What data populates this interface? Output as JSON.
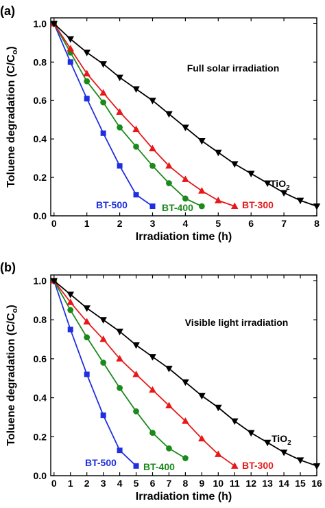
{
  "chart_data": [
    {
      "type": "line",
      "panel_label": "(a)",
      "annotation": "Full solar irradiation",
      "xlabel": "Irradiation time (h)",
      "ylabel_main": "Toluene degradation (C/C",
      "ylabel_sub": "o",
      "ylabel_close": ")",
      "xlim": [
        -0.1,
        8
      ],
      "ylim": [
        0,
        1.03
      ],
      "xticks": [
        0,
        1,
        2,
        3,
        4,
        5,
        6,
        7,
        8
      ],
      "yticks": [
        0.0,
        0.2,
        0.4,
        0.6,
        0.8,
        1.0
      ],
      "ytick_labels": [
        "0.0",
        "0.2",
        "0.4",
        "0.6",
        "0.8",
        "1.0"
      ],
      "series": [
        {
          "name": "BT-500",
          "color": "#1f2fe0",
          "marker": "square",
          "x": [
            0,
            0.5,
            1,
            1.5,
            2,
            2.5,
            3
          ],
          "y": [
            1.0,
            0.8,
            0.61,
            0.43,
            0.26,
            0.11,
            0.05
          ]
        },
        {
          "name": "BT-400",
          "color": "#1a8a1a",
          "marker": "circle",
          "x": [
            0,
            0.5,
            1,
            1.5,
            2,
            2.5,
            3,
            3.5,
            4,
            4.5
          ],
          "y": [
            1.0,
            0.85,
            0.7,
            0.59,
            0.46,
            0.36,
            0.26,
            0.17,
            0.09,
            0.05
          ]
        },
        {
          "name": "BT-300",
          "color": "#e81818",
          "marker": "triangle-up",
          "x": [
            0,
            0.5,
            1,
            1.5,
            2,
            2.5,
            3,
            3.5,
            4,
            4.5,
            5,
            5.5
          ],
          "y": [
            1.0,
            0.87,
            0.74,
            0.64,
            0.54,
            0.45,
            0.35,
            0.26,
            0.19,
            0.13,
            0.08,
            0.05
          ]
        },
        {
          "name": "TiO2",
          "label_main": "TiO",
          "label_sub": "2",
          "color": "#000000",
          "marker": "triangle-down",
          "x": [
            0,
            0.5,
            1,
            1.5,
            2,
            2.5,
            3,
            3.5,
            4,
            4.5,
            5,
            5.5,
            6,
            6.5,
            7,
            7.5,
            8
          ],
          "y": [
            1.0,
            0.92,
            0.85,
            0.79,
            0.72,
            0.66,
            0.6,
            0.53,
            0.46,
            0.39,
            0.33,
            0.27,
            0.22,
            0.17,
            0.12,
            0.08,
            0.05
          ]
        }
      ]
    },
    {
      "type": "line",
      "panel_label": "(b)",
      "annotation": "Visible light irradiation",
      "xlabel": "Irradiation time (h)",
      "ylabel_main": "Toluene degradation (C/C",
      "ylabel_sub": "o",
      "ylabel_close": ")",
      "xlim": [
        -0.2,
        16
      ],
      "ylim": [
        0,
        1.03
      ],
      "xticks": [
        0,
        1,
        2,
        3,
        4,
        5,
        6,
        7,
        8,
        9,
        10,
        11,
        12,
        13,
        14,
        15,
        16
      ],
      "yticks": [
        0.0,
        0.2,
        0.4,
        0.6,
        0.8,
        1.0
      ],
      "ytick_labels": [
        "0.0",
        "0.2",
        "0.4",
        "0.6",
        "0.8",
        "1.0"
      ],
      "series": [
        {
          "name": "BT-500",
          "color": "#1f2fe0",
          "marker": "square",
          "x": [
            0,
            1,
            2,
            3,
            4,
            5
          ],
          "y": [
            1.0,
            0.75,
            0.52,
            0.31,
            0.13,
            0.05
          ]
        },
        {
          "name": "BT-400",
          "color": "#1a8a1a",
          "marker": "circle",
          "x": [
            0,
            1,
            2,
            3,
            4,
            5,
            6,
            7,
            8
          ],
          "y": [
            1.0,
            0.85,
            0.71,
            0.58,
            0.45,
            0.33,
            0.22,
            0.14,
            0.09
          ]
        },
        {
          "name": "BT-300",
          "color": "#e81818",
          "marker": "triangle-up",
          "x": [
            0,
            1,
            2,
            3,
            4,
            5,
            6,
            7,
            8,
            9,
            10,
            11
          ],
          "y": [
            1.0,
            0.89,
            0.79,
            0.7,
            0.6,
            0.52,
            0.44,
            0.36,
            0.28,
            0.19,
            0.11,
            0.05
          ]
        },
        {
          "name": "TiO2",
          "label_main": "TiO",
          "label_sub": "2",
          "color": "#000000",
          "marker": "triangle-down",
          "x": [
            0,
            1,
            2,
            3,
            4,
            5,
            6,
            7,
            8,
            9,
            10,
            11,
            12,
            13,
            14,
            15,
            16
          ],
          "y": [
            1.0,
            0.93,
            0.86,
            0.8,
            0.74,
            0.67,
            0.61,
            0.55,
            0.48,
            0.41,
            0.35,
            0.28,
            0.22,
            0.17,
            0.12,
            0.08,
            0.05
          ]
        }
      ]
    }
  ]
}
